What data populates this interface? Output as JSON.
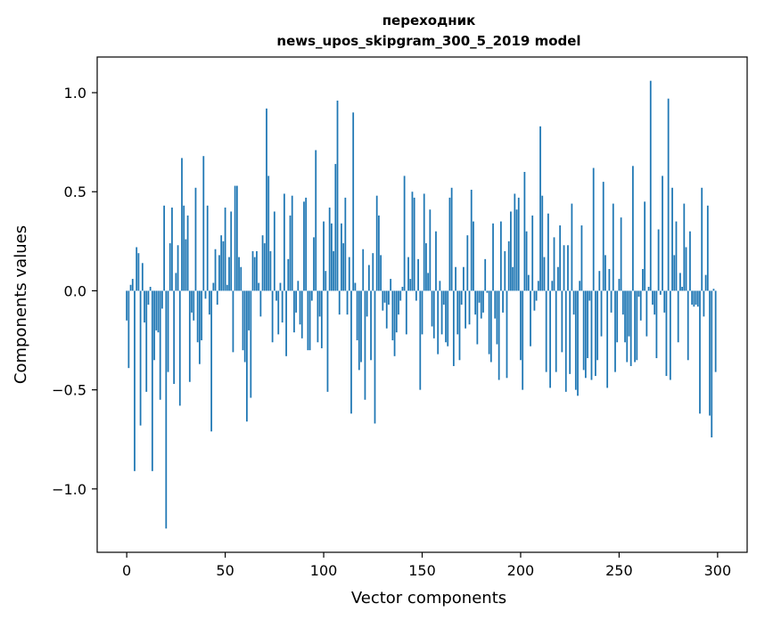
{
  "chart_data": {
    "type": "bar",
    "title": "переходник",
    "subtitle": "news_upos_skipgram_300_5_2019 model",
    "xlabel": "Vector components",
    "ylabel": "Components values",
    "xlim": [
      -15,
      315
    ],
    "ylim": [
      -1.32,
      1.18
    ],
    "xticks": [
      0,
      50,
      100,
      150,
      200,
      250,
      300
    ],
    "xtick_labels": [
      "0",
      "50",
      "100",
      "150",
      "200",
      "250",
      "300"
    ],
    "yticks": [
      -1.0,
      -0.5,
      0.0,
      0.5,
      1.0
    ],
    "ytick_labels": [
      "−1.0",
      "−0.5",
      "0.0",
      "0.5",
      "1.0"
    ],
    "grid": false,
    "bar_color": "#1f77b4",
    "values": [
      -0.15,
      -0.39,
      0.03,
      0.06,
      -0.91,
      0.22,
      0.19,
      -0.68,
      0.14,
      -0.16,
      -0.51,
      -0.07,
      0.02,
      -0.91,
      -0.35,
      -0.2,
      -0.21,
      -0.55,
      -0.09,
      0.43,
      -1.2,
      -0.41,
      0.24,
      0.42,
      -0.47,
      0.09,
      0.23,
      -0.58,
      0.67,
      0.43,
      0.26,
      0.38,
      -0.46,
      -0.11,
      -0.15,
      0.52,
      -0.26,
      -0.37,
      -0.25,
      0.68,
      -0.04,
      0.43,
      -0.12,
      -0.71,
      0.04,
      0.21,
      -0.07,
      0.18,
      0.28,
      0.25,
      0.42,
      0.03,
      0.17,
      0.4,
      -0.31,
      0.53,
      0.53,
      0.17,
      0.12,
      -0.3,
      -0.36,
      -0.66,
      -0.2,
      -0.54,
      0.2,
      0.17,
      0.2,
      0.04,
      -0.13,
      0.28,
      0.24,
      0.92,
      0.58,
      0.2,
      -0.26,
      0.4,
      -0.05,
      -0.22,
      0.04,
      -0.16,
      0.49,
      -0.33,
      0.16,
      0.38,
      0.48,
      -0.21,
      -0.11,
      0.05,
      -0.17,
      -0.24,
      0.45,
      0.47,
      -0.3,
      -0.3,
      -0.05,
      0.27,
      0.71,
      -0.26,
      -0.13,
      -0.29,
      0.35,
      0.1,
      -0.51,
      0.42,
      0.34,
      0.2,
      0.64,
      0.96,
      -0.12,
      0.34,
      0.24,
      0.47,
      -0.12,
      0.17,
      -0.62,
      0.9,
      0.04,
      -0.25,
      -0.4,
      -0.36,
      0.21,
      -0.55,
      -0.13,
      0.13,
      -0.35,
      0.19,
      -0.67,
      0.48,
      0.38,
      0.18,
      -0.1,
      -0.06,
      -0.19,
      -0.07,
      0.06,
      -0.25,
      -0.33,
      -0.21,
      -0.12,
      -0.05,
      0.02,
      0.58,
      -0.22,
      0.17,
      0.06,
      0.5,
      0.47,
      -0.05,
      0.16,
      -0.5,
      -0.22,
      0.49,
      0.24,
      0.09,
      0.41,
      -0.18,
      -0.24,
      0.3,
      -0.32,
      0.05,
      -0.22,
      -0.07,
      -0.26,
      -0.28,
      0.47,
      0.52,
      -0.38,
      0.12,
      -0.22,
      -0.35,
      -0.07,
      0.12,
      -0.19,
      0.28,
      -0.17,
      0.51,
      0.35,
      -0.12,
      -0.27,
      -0.06,
      -0.14,
      -0.11,
      0.16,
      -0.01,
      -0.32,
      -0.36,
      0.34,
      -0.14,
      -0.27,
      -0.45,
      0.35,
      -0.11,
      0.2,
      -0.44,
      0.25,
      0.4,
      0.12,
      0.49,
      0.41,
      0.47,
      -0.35,
      -0.5,
      0.6,
      0.3,
      0.08,
      -0.28,
      0.38,
      -0.1,
      -0.05,
      0.05,
      0.83,
      0.48,
      0.17,
      -0.41,
      0.39,
      -0.49,
      0.05,
      0.27,
      -0.41,
      0.12,
      0.33,
      -0.31,
      0.23,
      -0.51,
      0.23,
      -0.42,
      0.44,
      -0.12,
      -0.5,
      -0.53,
      0.05,
      0.33,
      -0.4,
      -0.44,
      -0.34,
      -0.05,
      -0.45,
      0.62,
      -0.43,
      -0.35,
      0.1,
      -0.23,
      0.55,
      0.18,
      -0.49,
      0.11,
      -0.11,
      0.44,
      -0.41,
      -0.26,
      0.06,
      0.37,
      -0.12,
      -0.26,
      -0.36,
      -0.23,
      -0.38,
      0.63,
      -0.36,
      -0.35,
      -0.03,
      -0.15,
      0.11,
      0.45,
      -0.23,
      0.02,
      1.06,
      -0.07,
      -0.12,
      -0.34,
      0.31,
      -0.02,
      0.58,
      -0.11,
      -0.43,
      0.97,
      -0.45,
      0.52,
      0.18,
      0.35,
      -0.26,
      0.09,
      0.02,
      0.44,
      0.22,
      -0.35,
      0.3,
      -0.07,
      -0.08,
      -0.07,
      -0.08,
      -0.62,
      0.52,
      -0.13,
      0.08,
      0.43,
      -0.63,
      -0.74,
      0.01,
      -0.41
    ]
  }
}
